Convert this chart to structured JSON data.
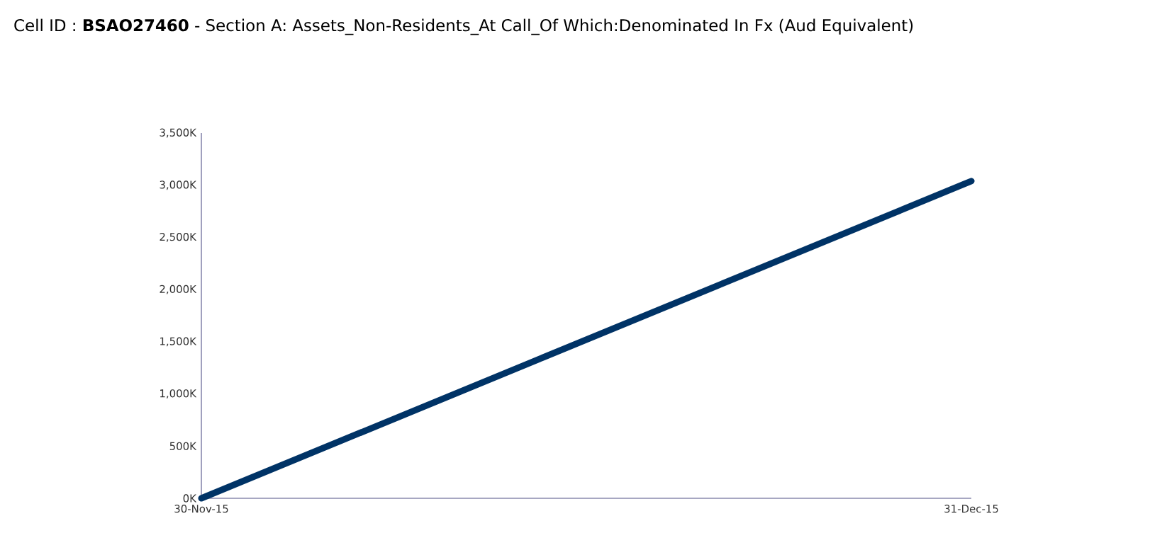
{
  "chart_data": {
    "type": "line",
    "title": "Cell ID : **BSAO27460** - Section A: Assets_Non-Residents_At Call_Of Which:Denominated In Fx (Aud Equivalent)",
    "categories": [
      "30-Nov-15",
      "31-Dec-15"
    ],
    "series": [
      {
        "color": "#003366",
        "values": [
          0,
          3040000
        ]
      }
    ],
    "ylim": [
      0,
      3500000
    ],
    "yticks": [
      {
        "value": 0,
        "label": "0K"
      },
      {
        "value": 500000,
        "label": "500K"
      },
      {
        "value": 1000000,
        "label": "1,000K"
      },
      {
        "value": 1500000,
        "label": "1,500K"
      },
      {
        "value": 2000000,
        "label": "2,000K"
      },
      {
        "value": 2500000,
        "label": "2,500K"
      },
      {
        "value": 3000000,
        "label": "3,000K"
      },
      {
        "value": 3500000,
        "label": "3,500K"
      }
    ],
    "grid": false,
    "marker": "none",
    "line_style": "solid"
  }
}
